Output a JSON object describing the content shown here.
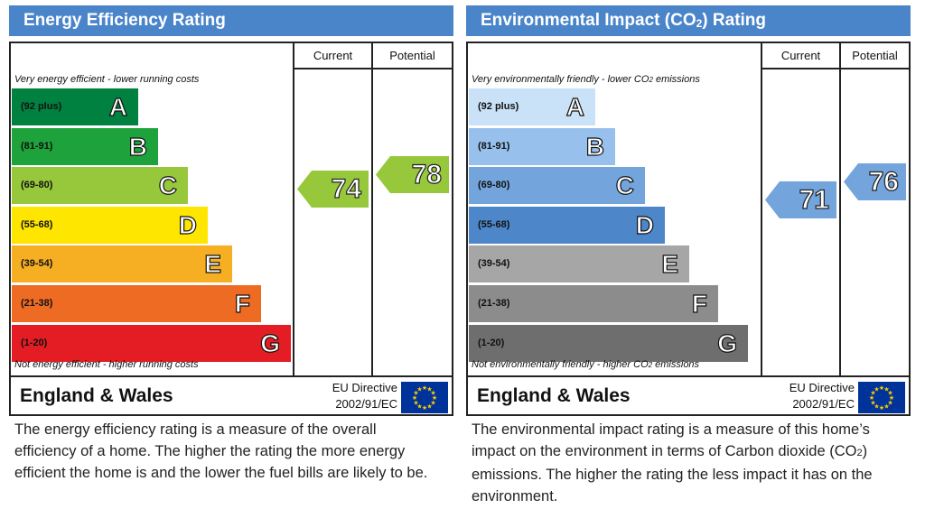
{
  "chart_data": [
    {
      "type": "bar",
      "title": "Energy Efficiency Rating",
      "columns": [
        "Current",
        "Potential"
      ],
      "top_note": "Very energy efficient - lower running costs",
      "bottom_note": "Not energy efficient - higher running costs",
      "categories": [
        "A",
        "B",
        "C",
        "D",
        "E",
        "F",
        "G"
      ],
      "ranges": [
        "(92 plus)",
        "(81-91)",
        "(69-80)",
        "(55-68)",
        "(39-54)",
        "(21-38)",
        "(1-20)"
      ],
      "colors": [
        "#008140",
        "#1ea23c",
        "#97c83c",
        "#ffe600",
        "#f6ae23",
        "#ee6b24",
        "#e31d23"
      ],
      "current": 74,
      "potential": 78,
      "current_color": "#97c83c",
      "potential_color": "#97c83c",
      "region": "England & Wales",
      "directive_line1": "EU Directive",
      "directive_line2": "2002/91/EC"
    },
    {
      "type": "bar",
      "title_main": "Environmental Impact (CO",
      "title_sub": "2",
      "title_end": ") Rating",
      "columns": [
        "Current",
        "Potential"
      ],
      "top_note_main": "Very environmentally friendly - lower CO",
      "top_note_sub": "2",
      "top_note_end": " emissions",
      "bottom_note_main": "Not environmentally friendly - higher CO",
      "bottom_note_sub": "2",
      "bottom_note_end": " emissions",
      "categories": [
        "A",
        "B",
        "C",
        "D",
        "E",
        "F",
        "G"
      ],
      "ranges": [
        "(92 plus)",
        "(81-91)",
        "(69-80)",
        "(55-68)",
        "(39-54)",
        "(21-38)",
        "(1-20)"
      ],
      "colors": [
        "#cae2f7",
        "#97c0ec",
        "#73a4dc",
        "#4d86c9",
        "#a6a6a6",
        "#8c8c8c",
        "#6e6e6e"
      ],
      "current": 71,
      "potential": 76,
      "current_color": "#73a4dc",
      "potential_color": "#73a4dc",
      "region": "England & Wales",
      "directive_line1": "EU Directive",
      "directive_line2": "2002/91/EC"
    }
  ],
  "descriptions": {
    "energy": "The energy efficiency rating is a measure of the overall efficiency of a home. The higher the rating the more energy efficient the home is and the lower the fuel bills are likely to be.",
    "environment_main": "The environmental impact rating is a measure of this home’s impact on the environment in terms of Carbon dioxide (CO",
    "environment_sub": "2",
    "environment_end": ") emissions. The higher the rating the less impact it has on the environment."
  }
}
